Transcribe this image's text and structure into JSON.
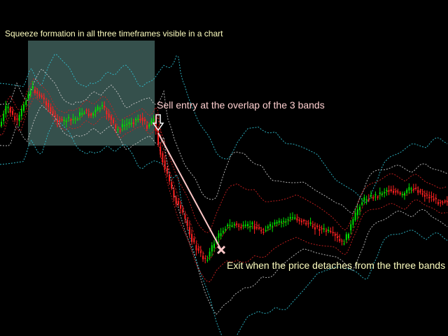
{
  "chart_data": {
    "type": "line",
    "title": "",
    "xlabel": "",
    "ylabel": "",
    "grid": false,
    "background": "#000000",
    "x": [
      0,
      5,
      10,
      15,
      20,
      25,
      30,
      35,
      40,
      45,
      50,
      55,
      60,
      65,
      70,
      75,
      80,
      85,
      90,
      95,
      100,
      105,
      110,
      115,
      120,
      125,
      130,
      135,
      140,
      145,
      150,
      155,
      160,
      165,
      170,
      175,
      180,
      185,
      190,
      195,
      200,
      205,
      210,
      215,
      220,
      225,
      230,
      235,
      240,
      245,
      250,
      255,
      260,
      265,
      270,
      275,
      280,
      285,
      290,
      295,
      300,
      305,
      310,
      315,
      320,
      325,
      330,
      335,
      340,
      345,
      350,
      355,
      360,
      365,
      370,
      375,
      380,
      385,
      390,
      395,
      400,
      405,
      410,
      415,
      420,
      425,
      430,
      435,
      440,
      445,
      450,
      455,
      460,
      465,
      470,
      475,
      480,
      485,
      490,
      495,
      500,
      505,
      510,
      515,
      520,
      525,
      530,
      535,
      540,
      545,
      550,
      555,
      560,
      565,
      570,
      575,
      580,
      585,
      590,
      595,
      600,
      605,
      610,
      615,
      620,
      625,
      630,
      635,
      640
    ],
    "series": [
      {
        "role": "price",
        "y": [
          180,
          165,
          150,
          160,
          170,
          175,
          160,
          145,
          135,
          125,
          130,
          135,
          140,
          145,
          155,
          165,
          170,
          172,
          175,
          170,
          172,
          170,
          168,
          162,
          158,
          162,
          165,
          160,
          155,
          152,
          158,
          165,
          175,
          185,
          185,
          180,
          178,
          175,
          172,
          170,
          168,
          175,
          180,
          175,
          165,
          205,
          220,
          240,
          255,
          270,
          285,
          295,
          305,
          315,
          330,
          345,
          355,
          362,
          368,
          370,
          360,
          348,
          340,
          332,
          325,
          323,
          322,
          320,
          323,
          325,
          325,
          323,
          320,
          325,
          328,
          330,
          327,
          324,
          322,
          320,
          318,
          316,
          314,
          312,
          310,
          313,
          315,
          318,
          320,
          322,
          324,
          326,
          328,
          330,
          332,
          335,
          340,
          345,
          348,
          338,
          325,
          315,
          300,
          290,
          285,
          282,
          281,
          280,
          278,
          275,
          272,
          270,
          272,
          275,
          278,
          280,
          275,
          270,
          268,
          270,
          275,
          278,
          280,
          282,
          285,
          288,
          287,
          286,
          284
        ]
      }
    ],
    "band_colors": {
      "price_up": "#00e000",
      "price_down": "#ff2020",
      "band_1": "#d02020",
      "band_2": "#c8c8c8",
      "band_3": "#30c0d0"
    },
    "squeeze_zone": {
      "x": [
        40,
        221
      ],
      "fill": "#7fbfb4"
    },
    "trade": {
      "entry": {
        "x": 226,
        "y": 190
      },
      "exit": {
        "x": 316,
        "y": 357
      },
      "line_color": "#ffc8c8"
    },
    "annotations": [
      {
        "id": "squeeze",
        "text": "Squeeze formation in all three timeframes visible in a chart",
        "color": "#ffffc0"
      },
      {
        "id": "sell",
        "text": "Sell entry at the overlap of the 3 bands",
        "color": "#ffd0d0"
      },
      {
        "id": "exit",
        "text": "Exit when the price detaches from the three bands",
        "color": "#ffffc0"
      }
    ]
  }
}
